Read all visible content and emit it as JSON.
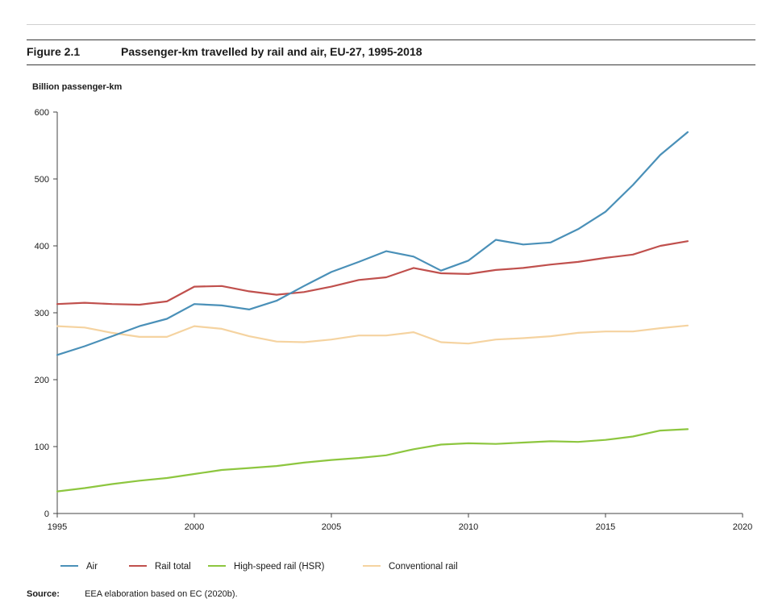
{
  "figure": {
    "number": "Figure 2.1",
    "title": "Passenger-km travelled by rail and air, EU-27, 1995-2018"
  },
  "source": {
    "label": "Source:",
    "text": "EEA elaboration based on EC (2020b)."
  },
  "chart_data": {
    "type": "line",
    "title": "Passenger-km travelled by rail and air, EU-27, 1995-2018",
    "xlabel": "",
    "ylabel": "Billion passenger-km",
    "xlim": [
      1995,
      2020
    ],
    "ylim": [
      0,
      600
    ],
    "x_ticks": [
      1995,
      2000,
      2005,
      2010,
      2015,
      2020
    ],
    "y_ticks": [
      0,
      100,
      200,
      300,
      400,
      500,
      600
    ],
    "grid": false,
    "legend_position": "bottom",
    "x": [
      1995,
      1996,
      1997,
      1998,
      1999,
      2000,
      2001,
      2002,
      2003,
      2004,
      2005,
      2006,
      2007,
      2008,
      2009,
      2010,
      2011,
      2012,
      2013,
      2014,
      2015,
      2016,
      2017,
      2018
    ],
    "series": [
      {
        "name": "Air",
        "color": "#4a90b8",
        "values": [
          237,
          250,
          265,
          280,
          291,
          313,
          311,
          305,
          318,
          340,
          361,
          376,
          392,
          384,
          363,
          378,
          409,
          402,
          405,
          425,
          451,
          491,
          536,
          570
        ]
      },
      {
        "name": "Rail total",
        "color": "#c0504d",
        "values": [
          313,
          315,
          313,
          312,
          317,
          339,
          340,
          332,
          327,
          331,
          339,
          349,
          353,
          367,
          359,
          358,
          364,
          367,
          372,
          376,
          382,
          387,
          400,
          407
        ]
      },
      {
        "name": "High-speed rail (HSR)",
        "color": "#8dc63f",
        "values": [
          33,
          38,
          44,
          49,
          53,
          59,
          65,
          68,
          71,
          76,
          80,
          83,
          87,
          96,
          103,
          105,
          104,
          106,
          108,
          107,
          110,
          115,
          124,
          126
        ]
      },
      {
        "name": "Conventional rail",
        "color": "#f5d3a0",
        "values": [
          280,
          278,
          270,
          264,
          264,
          280,
          276,
          265,
          257,
          256,
          260,
          266,
          266,
          271,
          256,
          254,
          260,
          262,
          265,
          270,
          272,
          272,
          277,
          281
        ]
      }
    ]
  }
}
